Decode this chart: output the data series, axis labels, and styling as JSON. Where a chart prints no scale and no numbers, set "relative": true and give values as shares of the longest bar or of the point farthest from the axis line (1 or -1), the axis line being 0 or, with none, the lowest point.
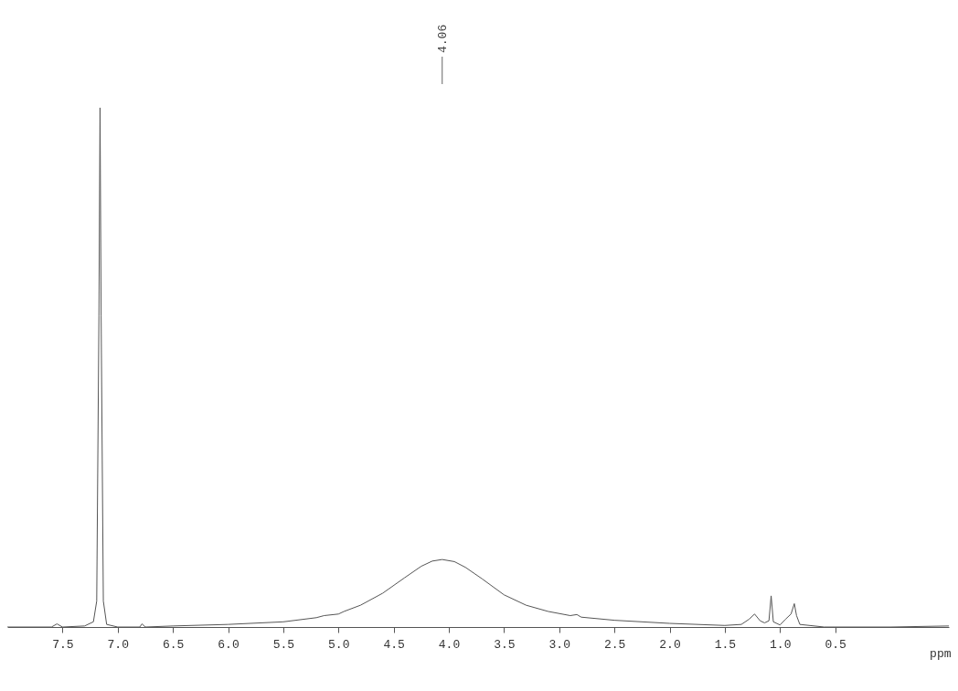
{
  "chart_data": {
    "type": "line",
    "relative": true,
    "xlabel": "ppm",
    "xlim": [
      8.0,
      -0.53
    ],
    "xticks": [
      7.5,
      {
        "value": 7,
        "label": "7.0"
      },
      6.5,
      {
        "value": 6,
        "label": "6.0"
      },
      5.5,
      {
        "value": 5,
        "label": "5.0"
      },
      4.5,
      {
        "value": 4,
        "label": "4.0"
      },
      3.5,
      {
        "value": 3,
        "label": "3.0"
      },
      2.5,
      {
        "value": 2,
        "label": "2.0"
      },
      1.5,
      {
        "value": 1,
        "label": "1.0"
      },
      0.5
    ],
    "x": [
      8.0,
      7.6,
      7.55,
      7.5,
      7.3,
      7.22,
      7.19,
      7.17,
      7.16,
      7.15,
      7.13,
      7.1,
      7.0,
      6.8,
      6.78,
      6.75,
      6.5,
      6.0,
      5.5,
      5.2,
      5.13,
      5.0,
      4.95,
      4.8,
      4.6,
      4.4,
      4.25,
      4.15,
      4.06,
      3.95,
      3.85,
      3.7,
      3.5,
      3.3,
      3.1,
      2.9,
      2.84,
      2.8,
      2.5,
      2.0,
      1.5,
      1.35,
      1.28,
      1.23,
      1.18,
      1.14,
      1.1,
      1.08,
      1.06,
      1.0,
      0.95,
      0.9,
      0.87,
      0.85,
      0.82,
      0.6,
      0.0,
      -0.53
    ],
    "series": [
      {
        "color": "#555555",
        "values": [
          0.0,
          0.0,
          0.006,
          0.0,
          0.002,
          0.01,
          0.05,
          0.6,
          1.0,
          0.6,
          0.05,
          0.005,
          0.0,
          0.0,
          0.006,
          0.0,
          0.002,
          0.005,
          0.01,
          0.018,
          0.022,
          0.025,
          0.03,
          0.042,
          0.065,
          0.095,
          0.117,
          0.127,
          0.13,
          0.126,
          0.115,
          0.093,
          0.062,
          0.042,
          0.03,
          0.022,
          0.024,
          0.019,
          0.013,
          0.007,
          0.003,
          0.005,
          0.015,
          0.025,
          0.012,
          0.008,
          0.012,
          0.06,
          0.01,
          0.004,
          0.015,
          0.025,
          0.045,
          0.022,
          0.005,
          0.0,
          0.0,
          0.002
        ]
      }
    ],
    "annotations": [
      {
        "text": "4.06",
        "x": 4.06
      }
    ],
    "grid": false,
    "marker": "none",
    "line_style": "solid"
  }
}
